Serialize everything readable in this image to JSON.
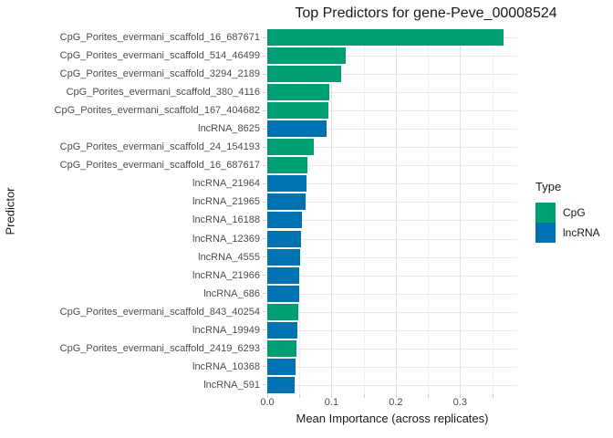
{
  "header": {
    "title": "Top Predictors for gene-Peve_00008524"
  },
  "axes": {
    "x_title": "Mean Importance (across replicates)",
    "y_title": "Predictor"
  },
  "legend": {
    "title": "Type",
    "entries": [
      {
        "label": "CpG",
        "color": "#009E73"
      },
      {
        "label": "lncRNA",
        "color": "#0072B2"
      }
    ]
  },
  "chart_data": {
    "type": "bar",
    "orientation": "horizontal",
    "title": "Top Predictors for gene-Peve_00008524",
    "xlabel": "Mean Importance (across replicates)",
    "ylabel": "Predictor",
    "legend_title": "Type",
    "legend_position": "right",
    "grid": true,
    "xlim": [
      0,
      0.389
    ],
    "x_major_ticks": [
      0,
      0.1,
      0.2,
      0.3
    ],
    "x_tick_labels": [
      "0.0",
      "0.1",
      "0.2",
      "0.3"
    ],
    "x_minor_ticks": [
      0.05,
      0.15,
      0.25,
      0.35
    ],
    "x_axis_tick_marks": [
      0,
      0.05,
      0.1,
      0.15,
      0.2,
      0.25,
      0.3,
      0.35
    ],
    "colors": {
      "CpG": "#009E73",
      "lncRNA": "#0072B2"
    },
    "categories": [
      "CpG_Porites_evermani_scaffold_16_687671",
      "CpG_Porites_evermani_scaffold_514_46499",
      "CpG_Porites_evermani_scaffold_3294_2189",
      "CpG_Porites_evermani_scaffold_380_4116",
      "CpG_Porites_evermani_scaffold_167_404682",
      "lncRNA_8625",
      "CpG_Porites_evermani_scaffold_24_154193",
      "CpG_Porites_evermani_scaffold_16_687617",
      "lncRNA_21964",
      "lncRNA_21965",
      "lncRNA_16188",
      "lncRNA_12369",
      "lncRNA_4555",
      "lncRNA_21966",
      "lncRNA_686",
      "CpG_Porites_evermani_scaffold_843_40254",
      "lncRNA_19949",
      "CpG_Porites_evermani_scaffold_2419_6293",
      "lncRNA_10368",
      "lncRNA_591"
    ],
    "types": [
      "CpG",
      "CpG",
      "CpG",
      "CpG",
      "CpG",
      "lncRNA",
      "CpG",
      "CpG",
      "lncRNA",
      "lncRNA",
      "lncRNA",
      "lncRNA",
      "lncRNA",
      "lncRNA",
      "lncRNA",
      "CpG",
      "lncRNA",
      "CpG",
      "lncRNA",
      "lncRNA"
    ],
    "values": [
      0.367,
      0.122,
      0.115,
      0.096,
      0.095,
      0.092,
      0.073,
      0.062,
      0.061,
      0.06,
      0.054,
      0.052,
      0.051,
      0.05,
      0.05,
      0.048,
      0.047,
      0.045,
      0.044,
      0.042
    ]
  }
}
